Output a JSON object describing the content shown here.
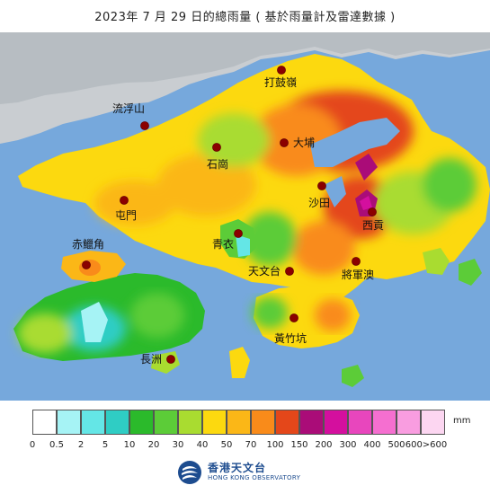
{
  "title": "2023年 7 月 29 日的總雨量 ( 基於雨量計及雷達數據 )",
  "locations": [
    {
      "id": "ta-kwu-ling",
      "label": "打鼓嶺"
    },
    {
      "id": "lau-fau-shan",
      "label": "流浮山"
    },
    {
      "id": "tai-po",
      "label": "大埔"
    },
    {
      "id": "shek-kong",
      "label": "石崗"
    },
    {
      "id": "tuen-mun",
      "label": "屯門"
    },
    {
      "id": "sha-tin",
      "label": "沙田"
    },
    {
      "id": "sai-kung",
      "label": "西貢"
    },
    {
      "id": "tsing-yi",
      "label": "青衣"
    },
    {
      "id": "chek-lap-kok",
      "label": "赤鱲角"
    },
    {
      "id": "tsim-sha-tsui",
      "label": "天文台"
    },
    {
      "id": "tseung-kwan-o",
      "label": "將軍澳"
    },
    {
      "id": "wong-chuk-hang",
      "label": "黃竹坑"
    },
    {
      "id": "cheung-chau",
      "label": "長洲"
    }
  ],
  "legend": {
    "unit": "mm",
    "tick_labels": [
      "0",
      "0.5",
      "2",
      "5",
      "10",
      "20",
      "30",
      "40",
      "50",
      "70",
      "100",
      "150",
      "200",
      "300",
      "400",
      "500",
      "600>600"
    ],
    "colors": [
      "#ffffff",
      "#a6f3f5",
      "#64e6e6",
      "#2fcdc4",
      "#2bba2b",
      "#5ccc38",
      "#a9dc30",
      "#fcd90f",
      "#fbb717",
      "#f98b1a",
      "#e4471a",
      "#aa0c78",
      "#d40f9e",
      "#e846bd",
      "#f56fd0",
      "#f99de0",
      "#fcd6f1"
    ]
  },
  "logo": {
    "name_zh": "香港天文台",
    "name_en": "HONG KONG OBSERVATORY"
  }
}
